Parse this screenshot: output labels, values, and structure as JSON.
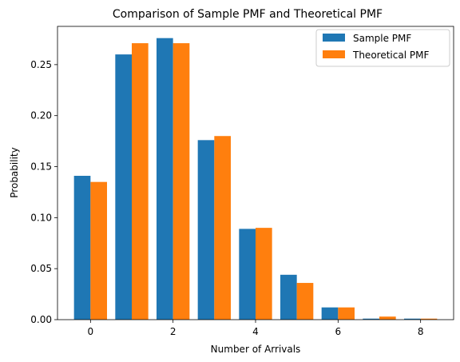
{
  "chart_data": {
    "type": "bar",
    "title": "Comparison of Sample PMF and Theoretical PMF",
    "xlabel": "Number of Arrivals",
    "ylabel": "Probability",
    "x": [
      0,
      1,
      2,
      3,
      4,
      5,
      6,
      7,
      8
    ],
    "xlim": [
      -0.8,
      8.8
    ],
    "ylim": [
      0,
      0.2875
    ],
    "xticks": [
      0,
      2,
      4,
      6,
      8
    ],
    "xtick_labels": [
      "0",
      "2",
      "4",
      "6",
      "8"
    ],
    "yticks": [
      0.0,
      0.05,
      0.1,
      0.15,
      0.2,
      0.25
    ],
    "ytick_labels": [
      "0.00",
      "0.05",
      "0.10",
      "0.15",
      "0.20",
      "0.25"
    ],
    "grid": false,
    "legend_position": "top-right",
    "series": [
      {
        "name": "Sample PMF",
        "color": "#1f77b4",
        "values": [
          0.141,
          0.26,
          0.276,
          0.176,
          0.089,
          0.044,
          0.012,
          0.001,
          0.001
        ]
      },
      {
        "name": "Theoretical PMF",
        "color": "#ff7f0e",
        "values": [
          0.135,
          0.271,
          0.271,
          0.18,
          0.09,
          0.036,
          0.012,
          0.003,
          0.001
        ]
      }
    ]
  }
}
